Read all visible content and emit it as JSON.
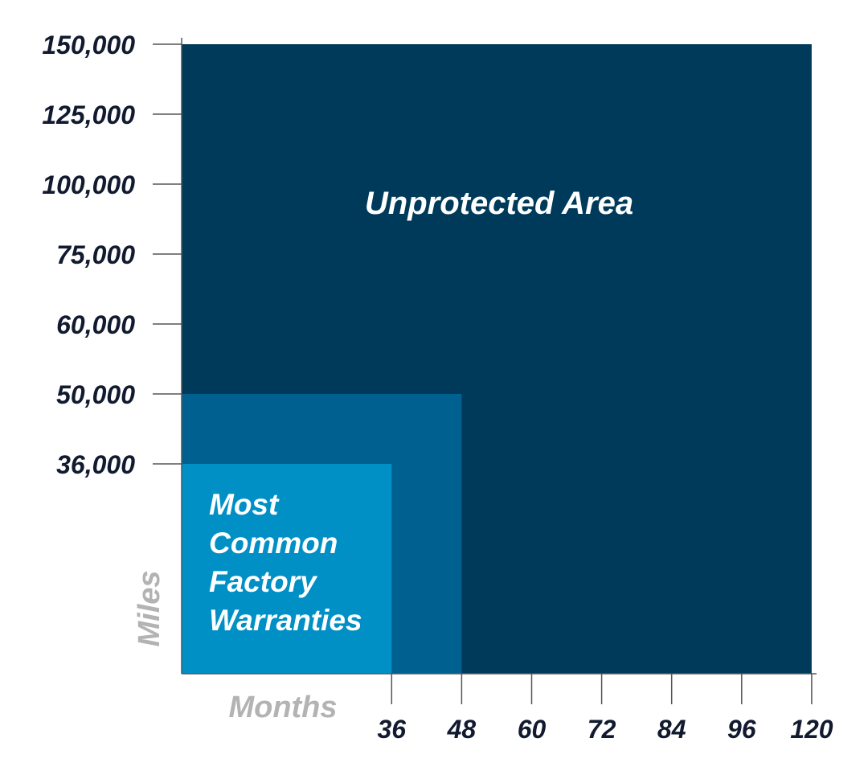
{
  "chart_data": {
    "type": "area",
    "title": "",
    "xlabel": "Months",
    "ylabel": "Miles",
    "x_ticks": [
      36,
      48,
      60,
      72,
      84,
      96,
      120
    ],
    "x_tick_labels": [
      "36",
      "48",
      "60",
      "72",
      "84",
      "96",
      "120"
    ],
    "y_ticks": [
      36000,
      50000,
      60000,
      75000,
      100000,
      125000,
      150000
    ],
    "y_tick_labels": [
      "36,000",
      "50,000",
      "60,000",
      "75,000",
      "100,000",
      "125,000",
      "150,000"
    ],
    "regions": [
      {
        "name": "Unprotected Area",
        "label_lines": [
          "Unprotected Area"
        ],
        "months": 120,
        "miles": 150000,
        "color": "#003a5a"
      },
      {
        "name": "",
        "label_lines": [],
        "months": 48,
        "miles": 50000,
        "color": "#00608f"
      },
      {
        "name": "Most Common Factory Warranties",
        "label_lines": [
          "Most",
          "Common",
          "Factory",
          "Warranties"
        ],
        "months": 36,
        "miles": 36000,
        "color": "#0090c5"
      }
    ],
    "grid": false,
    "legend": "none"
  }
}
